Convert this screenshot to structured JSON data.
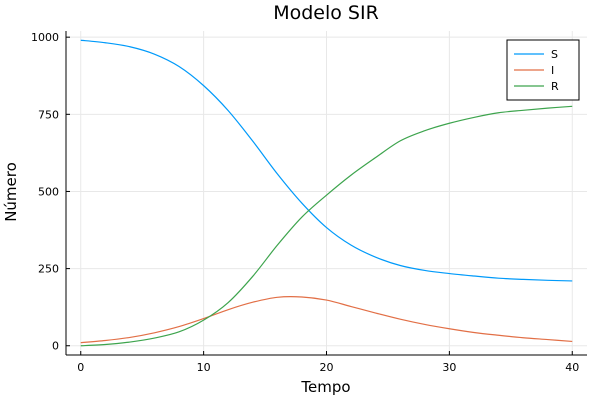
{
  "chart_data": {
    "type": "line",
    "title": "Modelo SIR",
    "xlabel": "Tempo",
    "ylabel": "Número",
    "xlim": [
      -1.2,
      41.2
    ],
    "ylim": [
      -30,
      1020
    ],
    "xticks": [
      0,
      10,
      20,
      30,
      40
    ],
    "yticks": [
      0,
      250,
      500,
      750,
      1000
    ],
    "xtick_labels": [
      "0",
      "10",
      "20",
      "30",
      "40"
    ],
    "ytick_labels": [
      "0",
      "250",
      "500",
      "750",
      "1000"
    ],
    "grid": true,
    "legend_position": "top-right",
    "x": [
      0,
      2,
      4,
      6,
      8,
      10,
      12,
      14,
      16,
      18,
      20,
      22,
      24,
      26,
      28,
      30,
      32,
      34,
      36,
      38,
      40
    ],
    "series": [
      {
        "name": "S",
        "color": "#009AFA",
        "values": [
          990,
          982,
          969,
          945,
          905,
          843,
          762,
          663,
          557,
          462,
          383,
          326,
          287,
          260,
          244,
          234,
          226,
          219,
          215,
          212,
          210
        ]
      },
      {
        "name": "I",
        "color": "#E26F46",
        "values": [
          10,
          17,
          27,
          42,
          62,
          88,
          117,
          141,
          157,
          158,
          148,
          127,
          106,
          86,
          69,
          55,
          43,
          34,
          26,
          20,
          14
        ]
      },
      {
        "name": "R",
        "color": "#3DA44D",
        "values": [
          0,
          4,
          12,
          25,
          45,
          83,
          140,
          225,
          326,
          417,
          488,
          553,
          610,
          664,
          697,
          721,
          740,
          755,
          763,
          770,
          776
        ]
      }
    ]
  }
}
